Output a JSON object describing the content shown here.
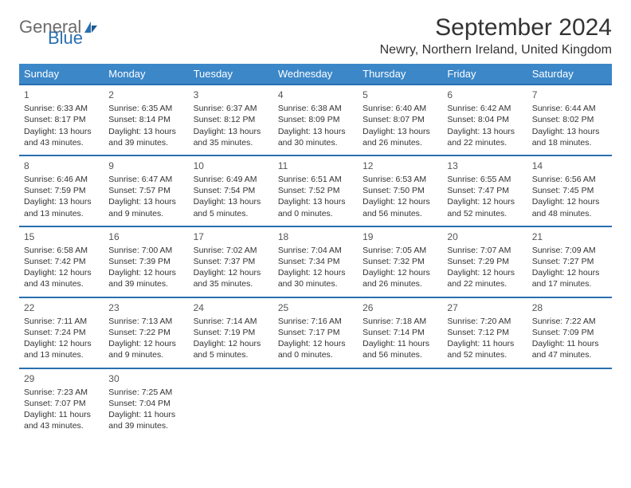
{
  "brand": {
    "part1": "General",
    "part2": "Blue"
  },
  "title": "September 2024",
  "location": "Newry, Northern Ireland, United Kingdom",
  "colors": {
    "header_bg": "#3b87c8",
    "border": "#2a6fb0",
    "text": "#333333",
    "brand_gray": "#6b6b6b",
    "brand_blue": "#2a6fb0"
  },
  "weekdays": [
    "Sunday",
    "Monday",
    "Tuesday",
    "Wednesday",
    "Thursday",
    "Friday",
    "Saturday"
  ],
  "weeks": [
    [
      {
        "n": "1",
        "sr": "6:33 AM",
        "ss": "8:17 PM",
        "dl": "13 hours and 43 minutes."
      },
      {
        "n": "2",
        "sr": "6:35 AM",
        "ss": "8:14 PM",
        "dl": "13 hours and 39 minutes."
      },
      {
        "n": "3",
        "sr": "6:37 AM",
        "ss": "8:12 PM",
        "dl": "13 hours and 35 minutes."
      },
      {
        "n": "4",
        "sr": "6:38 AM",
        "ss": "8:09 PM",
        "dl": "13 hours and 30 minutes."
      },
      {
        "n": "5",
        "sr": "6:40 AM",
        "ss": "8:07 PM",
        "dl": "13 hours and 26 minutes."
      },
      {
        "n": "6",
        "sr": "6:42 AM",
        "ss": "8:04 PM",
        "dl": "13 hours and 22 minutes."
      },
      {
        "n": "7",
        "sr": "6:44 AM",
        "ss": "8:02 PM",
        "dl": "13 hours and 18 minutes."
      }
    ],
    [
      {
        "n": "8",
        "sr": "6:46 AM",
        "ss": "7:59 PM",
        "dl": "13 hours and 13 minutes."
      },
      {
        "n": "9",
        "sr": "6:47 AM",
        "ss": "7:57 PM",
        "dl": "13 hours and 9 minutes."
      },
      {
        "n": "10",
        "sr": "6:49 AM",
        "ss": "7:54 PM",
        "dl": "13 hours and 5 minutes."
      },
      {
        "n": "11",
        "sr": "6:51 AM",
        "ss": "7:52 PM",
        "dl": "13 hours and 0 minutes."
      },
      {
        "n": "12",
        "sr": "6:53 AM",
        "ss": "7:50 PM",
        "dl": "12 hours and 56 minutes."
      },
      {
        "n": "13",
        "sr": "6:55 AM",
        "ss": "7:47 PM",
        "dl": "12 hours and 52 minutes."
      },
      {
        "n": "14",
        "sr": "6:56 AM",
        "ss": "7:45 PM",
        "dl": "12 hours and 48 minutes."
      }
    ],
    [
      {
        "n": "15",
        "sr": "6:58 AM",
        "ss": "7:42 PM",
        "dl": "12 hours and 43 minutes."
      },
      {
        "n": "16",
        "sr": "7:00 AM",
        "ss": "7:39 PM",
        "dl": "12 hours and 39 minutes."
      },
      {
        "n": "17",
        "sr": "7:02 AM",
        "ss": "7:37 PM",
        "dl": "12 hours and 35 minutes."
      },
      {
        "n": "18",
        "sr": "7:04 AM",
        "ss": "7:34 PM",
        "dl": "12 hours and 30 minutes."
      },
      {
        "n": "19",
        "sr": "7:05 AM",
        "ss": "7:32 PM",
        "dl": "12 hours and 26 minutes."
      },
      {
        "n": "20",
        "sr": "7:07 AM",
        "ss": "7:29 PM",
        "dl": "12 hours and 22 minutes."
      },
      {
        "n": "21",
        "sr": "7:09 AM",
        "ss": "7:27 PM",
        "dl": "12 hours and 17 minutes."
      }
    ],
    [
      {
        "n": "22",
        "sr": "7:11 AM",
        "ss": "7:24 PM",
        "dl": "12 hours and 13 minutes."
      },
      {
        "n": "23",
        "sr": "7:13 AM",
        "ss": "7:22 PM",
        "dl": "12 hours and 9 minutes."
      },
      {
        "n": "24",
        "sr": "7:14 AM",
        "ss": "7:19 PM",
        "dl": "12 hours and 5 minutes."
      },
      {
        "n": "25",
        "sr": "7:16 AM",
        "ss": "7:17 PM",
        "dl": "12 hours and 0 minutes."
      },
      {
        "n": "26",
        "sr": "7:18 AM",
        "ss": "7:14 PM",
        "dl": "11 hours and 56 minutes."
      },
      {
        "n": "27",
        "sr": "7:20 AM",
        "ss": "7:12 PM",
        "dl": "11 hours and 52 minutes."
      },
      {
        "n": "28",
        "sr": "7:22 AM",
        "ss": "7:09 PM",
        "dl": "11 hours and 47 minutes."
      }
    ],
    [
      {
        "n": "29",
        "sr": "7:23 AM",
        "ss": "7:07 PM",
        "dl": "11 hours and 43 minutes."
      },
      {
        "n": "30",
        "sr": "7:25 AM",
        "ss": "7:04 PM",
        "dl": "11 hours and 39 minutes."
      },
      null,
      null,
      null,
      null,
      null
    ]
  ],
  "labels": {
    "sunrise": "Sunrise: ",
    "sunset": "Sunset: ",
    "daylight": "Daylight: "
  }
}
